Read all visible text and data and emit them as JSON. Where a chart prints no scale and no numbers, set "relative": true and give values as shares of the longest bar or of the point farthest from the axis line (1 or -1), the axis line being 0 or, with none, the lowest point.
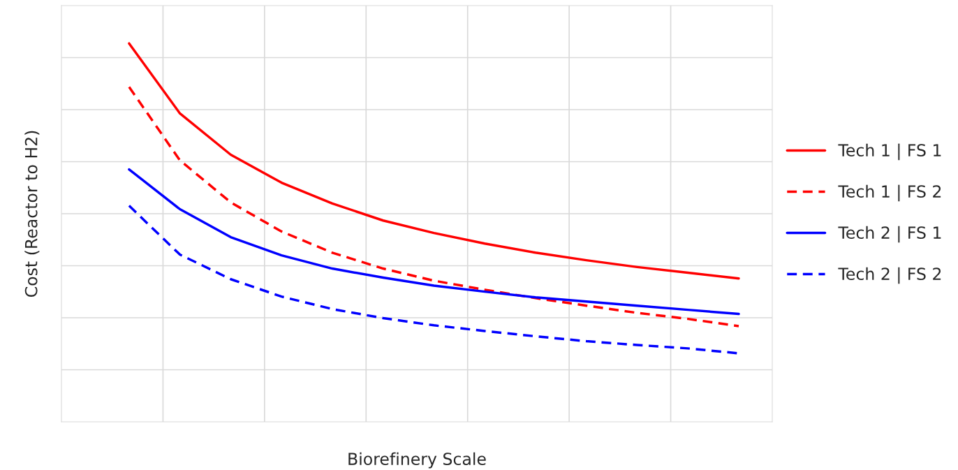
{
  "chart_data": {
    "type": "line",
    "relative": true,
    "xlabel": "Biorefinery Scale",
    "ylabel": "Cost (Reactor to H2)",
    "categories": [
      null,
      null,
      null,
      null,
      null,
      null,
      null,
      null,
      null,
      null,
      null,
      null,
      null
    ],
    "grid": true,
    "legend": "right",
    "marker": "none",
    "series": [
      {
        "name": "Tech 1 | FS 1",
        "color": "#ff0000",
        "line_style": "solid",
        "values": [
          1.0,
          0.815,
          0.706,
          0.632,
          0.577,
          0.532,
          0.499,
          0.471,
          0.447,
          0.427,
          0.409,
          0.394,
          0.379
        ]
      },
      {
        "name": "Tech 1 | FS 2",
        "color": "#ff0000",
        "line_style": "dashed",
        "values": [
          0.885,
          0.691,
          0.58,
          0.503,
          0.447,
          0.405,
          0.373,
          0.349,
          0.327,
          0.307,
          0.288,
          0.272,
          0.253
        ]
      },
      {
        "name": "Tech 2 | FS 1",
        "color": "#0000ff",
        "line_style": "solid",
        "values": [
          0.667,
          0.562,
          0.488,
          0.44,
          0.405,
          0.381,
          0.36,
          0.344,
          0.329,
          0.318,
          0.307,
          0.296,
          0.285
        ]
      },
      {
        "name": "Tech 2 | FS 2",
        "color": "#0000ff",
        "line_style": "dashed",
        "values": [
          0.571,
          0.442,
          0.377,
          0.331,
          0.298,
          0.274,
          0.255,
          0.24,
          0.226,
          0.213,
          0.203,
          0.194,
          0.181
        ]
      }
    ]
  }
}
